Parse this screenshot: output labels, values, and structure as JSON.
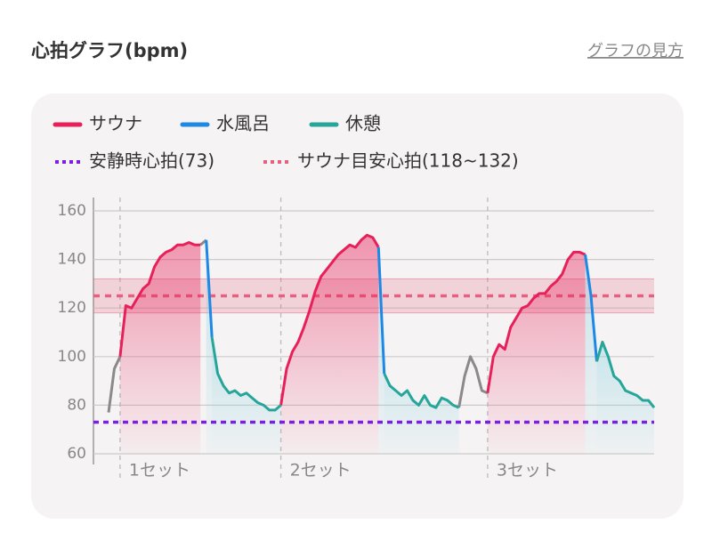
{
  "header": {
    "title": "心拍グラフ(bpm)",
    "link": "グラフの見方"
  },
  "chart_data": {
    "type": "line",
    "series": [
      {
        "color": "#8a8a8a",
        "values": [
          77,
          95,
          100,
          null,
          null,
          null,
          null,
          null,
          null,
          null,
          null,
          null,
          null,
          null,
          null,
          null,
          146,
          148,
          null,
          null,
          null,
          null,
          null,
          null,
          null,
          null,
          null,
          null,
          null,
          null,
          null,
          null,
          null,
          null,
          null,
          null,
          null,
          null,
          null,
          null,
          null,
          null,
          null,
          null,
          null,
          null,
          null,
          null,
          null,
          null,
          null,
          null,
          null,
          null,
          null,
          null,
          null,
          null,
          null,
          null,
          null,
          79,
          92,
          100,
          95,
          86,
          85,
          null,
          null,
          null,
          null,
          null,
          null,
          null,
          null,
          null,
          null,
          null,
          null,
          null,
          null,
          null,
          null,
          null,
          null,
          null,
          null,
          null,
          null,
          null,
          null,
          null,
          null,
          null,
          null,
          null
        ]
      },
      {
        "name": "サウナ",
        "color": "#e8205a",
        "values": [
          null,
          null,
          100,
          121,
          120,
          124,
          128,
          130,
          137,
          141,
          143,
          144,
          146,
          146,
          147,
          146,
          146,
          null,
          null,
          null,
          null,
          null,
          null,
          null,
          null,
          null,
          null,
          null,
          null,
          null,
          80,
          95,
          102,
          106,
          112,
          119,
          127,
          133,
          136,
          139,
          142,
          144,
          146,
          145,
          148,
          150,
          149,
          145,
          null,
          null,
          null,
          null,
          null,
          null,
          null,
          null,
          null,
          null,
          null,
          null,
          null,
          null,
          null,
          null,
          null,
          null,
          85,
          100,
          105,
          103,
          112,
          116,
          120,
          121,
          124,
          126,
          126,
          129,
          131,
          134,
          140,
          143,
          143,
          142,
          null,
          null,
          null,
          null,
          null,
          null,
          null,
          null,
          null,
          null,
          null,
          null
        ]
      },
      {
        "name": "水風呂",
        "color": "#1e88e5",
        "values": [
          null,
          null,
          null,
          null,
          null,
          null,
          null,
          null,
          null,
          null,
          null,
          null,
          null,
          null,
          null,
          null,
          null,
          148,
          108,
          null,
          null,
          null,
          null,
          null,
          null,
          null,
          null,
          null,
          null,
          null,
          null,
          null,
          null,
          null,
          null,
          null,
          null,
          null,
          null,
          null,
          null,
          null,
          null,
          null,
          null,
          null,
          null,
          145,
          93,
          null,
          null,
          null,
          null,
          null,
          null,
          null,
          null,
          null,
          null,
          null,
          null,
          null,
          null,
          null,
          null,
          null,
          null,
          null,
          null,
          null,
          null,
          null,
          null,
          null,
          null,
          null,
          null,
          null,
          null,
          null,
          null,
          null,
          null,
          142,
          125,
          98,
          null,
          null,
          null,
          null,
          null,
          null,
          null,
          null,
          null,
          null
        ]
      },
      {
        "name": "休憩",
        "color": "#26a69a",
        "values": [
          null,
          null,
          null,
          null,
          null,
          null,
          null,
          null,
          null,
          null,
          null,
          null,
          null,
          null,
          null,
          null,
          null,
          null,
          108,
          93,
          88,
          85,
          86,
          84,
          85,
          83,
          81,
          80,
          78,
          78,
          80,
          null,
          null,
          null,
          null,
          null,
          null,
          null,
          null,
          null,
          null,
          null,
          null,
          null,
          null,
          null,
          null,
          null,
          93,
          88,
          86,
          84,
          86,
          82,
          80,
          84,
          80,
          79,
          83,
          82,
          80,
          79,
          null,
          null,
          null,
          null,
          null,
          null,
          null,
          null,
          null,
          null,
          null,
          null,
          null,
          null,
          null,
          null,
          null,
          null,
          null,
          null,
          null,
          null,
          null,
          98,
          106,
          100,
          92,
          90,
          86,
          85,
          84,
          82,
          82,
          79
        ]
      }
    ],
    "reference_lines": {
      "rest": {
        "label": "安静時心拍(73)",
        "value": 73,
        "color": "#7b1fe0"
      },
      "target": {
        "label": "サウナ目安心拍(118~132)",
        "range": [
          118,
          132
        ],
        "color": "#e8607f"
      }
    },
    "set_markers": [
      {
        "label": "1セット",
        "index": 2
      },
      {
        "label": "2セット",
        "index": 30
      },
      {
        "label": "3セット",
        "index": 66
      }
    ],
    "ylim": [
      60,
      160
    ],
    "yticks": [
      60,
      80,
      100,
      120,
      140,
      160
    ],
    "grid": true
  }
}
